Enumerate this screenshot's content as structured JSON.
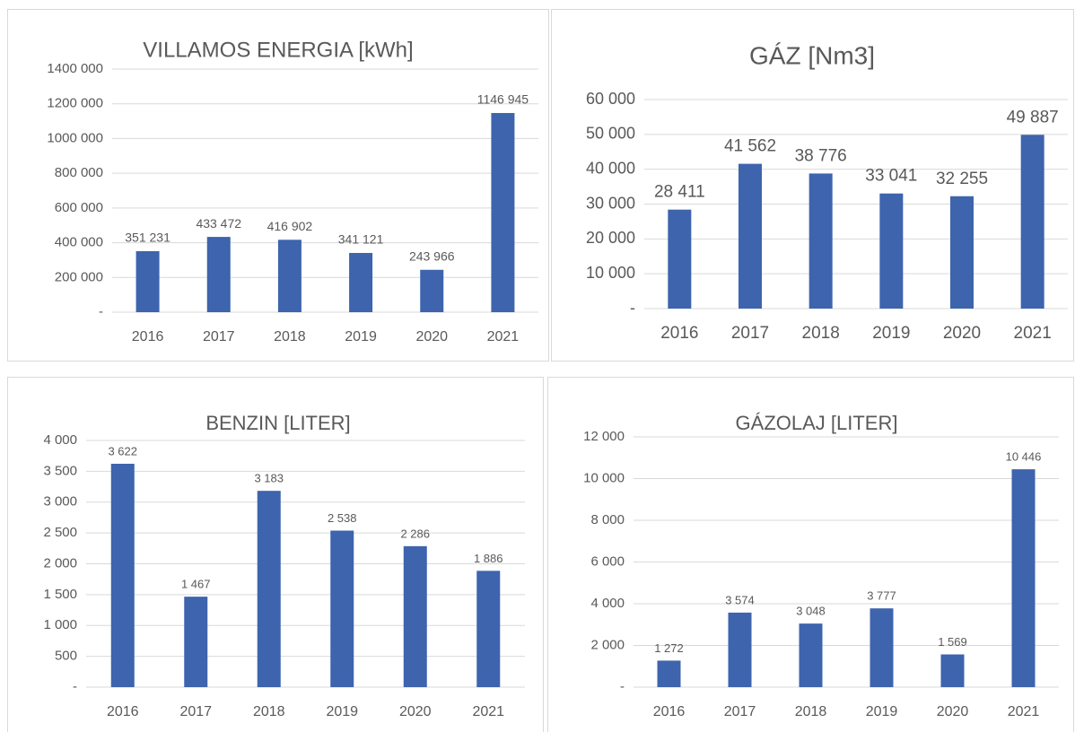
{
  "chart_data": [
    {
      "type": "bar",
      "title": "VILLAMOS ENERGIA [kWh]",
      "categories": [
        "2016",
        "2017",
        "2018",
        "2019",
        "2020",
        "2021"
      ],
      "values": [
        351231,
        433472,
        416902,
        341121,
        243966,
        1146945
      ],
      "value_labels": [
        "351 231",
        "433 472",
        "416 902",
        "341 121",
        "243 966",
        "1146 945"
      ],
      "color": "#3d64ad",
      "ylim": [
        0,
        1400000
      ],
      "yticks": [
        {
          "value": 0,
          "label": "-"
        },
        {
          "value": 200000,
          "label": "200 000"
        },
        {
          "value": 400000,
          "label": "400 000"
        },
        {
          "value": 600000,
          "label": "600 000"
        },
        {
          "value": 800000,
          "label": "800 000"
        },
        {
          "value": 1000000,
          "label": "1000 000"
        },
        {
          "value": 1200000,
          "label": "1200 000"
        },
        {
          "value": 1400000,
          "label": "1400 000"
        }
      ],
      "grid": true
    },
    {
      "type": "bar",
      "title": "GÁZ [Nm3]",
      "categories": [
        "2016",
        "2017",
        "2018",
        "2019",
        "2020",
        "2021"
      ],
      "values": [
        28411,
        41562,
        38776,
        33041,
        32255,
        49887
      ],
      "value_labels": [
        "28 411",
        "41 562",
        "38 776",
        "33 041",
        "32 255",
        "49 887"
      ],
      "color": "#3d64ad",
      "ylim": [
        0,
        60000
      ],
      "yticks": [
        {
          "value": 0,
          "label": "-"
        },
        {
          "value": 10000,
          "label": "10 000"
        },
        {
          "value": 20000,
          "label": "20 000"
        },
        {
          "value": 30000,
          "label": "30 000"
        },
        {
          "value": 40000,
          "label": "40 000"
        },
        {
          "value": 50000,
          "label": "50 000"
        },
        {
          "value": 60000,
          "label": "60 000"
        }
      ],
      "grid": true
    },
    {
      "type": "bar",
      "title": "BENZIN [LITER]",
      "categories": [
        "2016",
        "2017",
        "2018",
        "2019",
        "2020",
        "2021"
      ],
      "values": [
        3622,
        1467,
        3183,
        2538,
        2286,
        1886
      ],
      "value_labels": [
        "3 622",
        "1 467",
        "3 183",
        "2 538",
        "2 286",
        "1 886"
      ],
      "color": "#3d64ad",
      "ylim": [
        0,
        4000
      ],
      "yticks": [
        {
          "value": 0,
          "label": "-"
        },
        500,
        {
          "value": 1000,
          "label": "1 000"
        },
        {
          "value": 1500,
          "label": "1 500"
        },
        {
          "value": 2000,
          "label": "2 000"
        },
        {
          "value": 2500,
          "label": "2 500"
        },
        {
          "value": 3000,
          "label": "3 000"
        },
        {
          "value": 3500,
          "label": "3 500"
        },
        {
          "value": 4000,
          "label": "4 000"
        }
      ],
      "grid": true
    },
    {
      "type": "bar",
      "title": "GÁZOLAJ [LITER]",
      "categories": [
        "2016",
        "2017",
        "2018",
        "2019",
        "2020",
        "2021"
      ],
      "values": [
        1272,
        3574,
        3048,
        3777,
        1569,
        10446
      ],
      "value_labels": [
        "1 272",
        "3 574",
        "3 048",
        "3 777",
        "1 569",
        "10 446"
      ],
      "color": "#3d64ad",
      "ylim": [
        0,
        12000
      ],
      "yticks": [
        {
          "value": 0,
          "label": "-"
        },
        {
          "value": 2000,
          "label": "2 000"
        },
        {
          "value": 4000,
          "label": "4 000"
        },
        {
          "value": 6000,
          "label": "6 000"
        },
        {
          "value": 8000,
          "label": "8 000"
        },
        {
          "value": 10000,
          "label": "10 000"
        },
        {
          "value": 12000,
          "label": "12 000"
        }
      ],
      "grid": true
    }
  ]
}
